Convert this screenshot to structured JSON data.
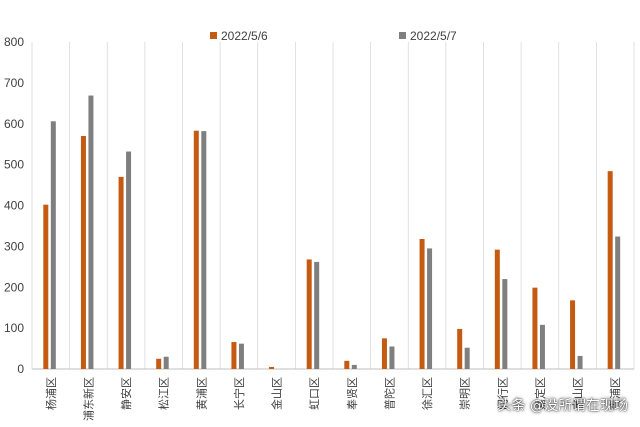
{
  "chart_data": {
    "type": "bar",
    "categories": [
      "杨浦区",
      "浦东新区",
      "静安区",
      "松江区",
      "黄浦区",
      "长宁区",
      "金山区",
      "虹口区",
      "奉贤区",
      "普陀区",
      "徐汇区",
      "崇明区",
      "闵行区",
      "嘉定区",
      "宝山区",
      "青浦区"
    ],
    "series": [
      {
        "name": "2022/5/6",
        "color": "#C55A11",
        "values": [
          402,
          570,
          470,
          25,
          583,
          66,
          5,
          268,
          20,
          75,
          318,
          98,
          292,
          199,
          168,
          484
        ]
      },
      {
        "name": "2022/5/7",
        "color": "#7F7F7F",
        "values": [
          606,
          669,
          532,
          30,
          582,
          62,
          0,
          262,
          10,
          55,
          295,
          52,
          220,
          108,
          32,
          324
        ]
      }
    ],
    "ylim": [
      0,
      800
    ],
    "yticks": [
      0,
      100,
      200,
      300,
      400,
      500,
      600,
      700,
      800
    ],
    "grid": "vertical category separators",
    "legend": "top-center",
    "title": "",
    "xlabel": "",
    "ylabel": ""
  },
  "watermark": "头条 @没所谓在现场"
}
